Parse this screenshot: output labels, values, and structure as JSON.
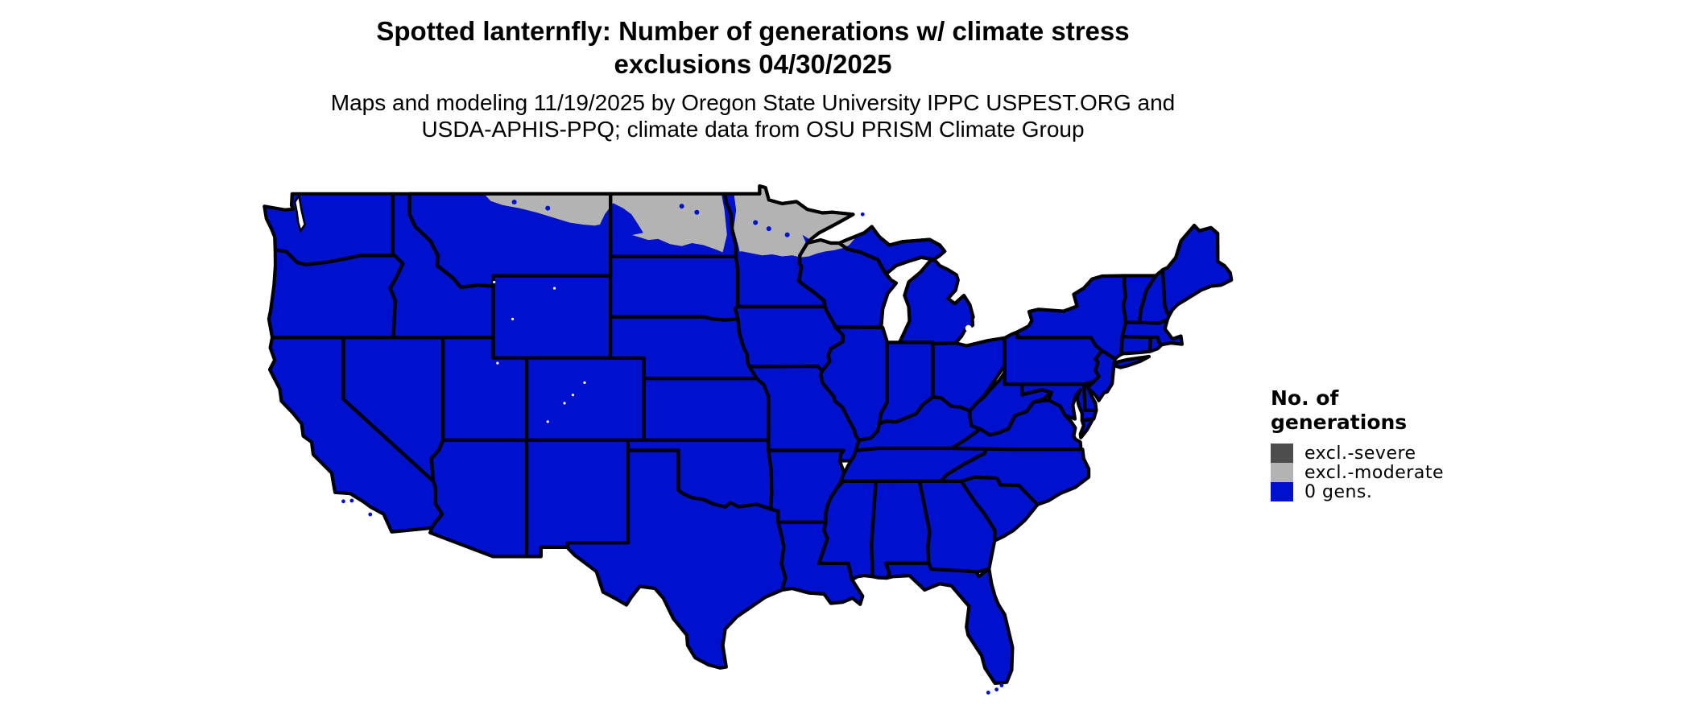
{
  "header": {
    "title_line1": "Spotted lanternfly: Number of generations w/ climate stress",
    "title_line2": "exclusions 04/30/2025",
    "subtitle_line1": "Maps and modeling 11/19/2025 by Oregon State University IPPC USPEST.ORG and",
    "subtitle_line2": "USDA-APHIS-PPQ; climate data from OSU PRISM Climate Group"
  },
  "legend": {
    "title_line1": "No. of",
    "title_line2": "generations",
    "items": [
      {
        "label": "excl.-severe",
        "color": "#4d4d4d"
      },
      {
        "label": "excl.-moderate",
        "color": "#b3b3b3"
      },
      {
        "label": "0 gens.",
        "color": "#0011cd"
      }
    ]
  },
  "map": {
    "region": "Contiguous United States",
    "colors": {
      "zero_generations": "#0011cd",
      "exclusion_moderate": "#b3b3b3",
      "exclusion_severe": "#4d4d4d",
      "state_border": "#000000",
      "water_background": "#ffffff"
    },
    "depicted": {
      "exclusion_moderate_area": "northern Montana, most of North Dakota, northern Minnesota and far-northern Wisconsin",
      "zero_generations_area": "all remaining contiguous United States"
    }
  }
}
